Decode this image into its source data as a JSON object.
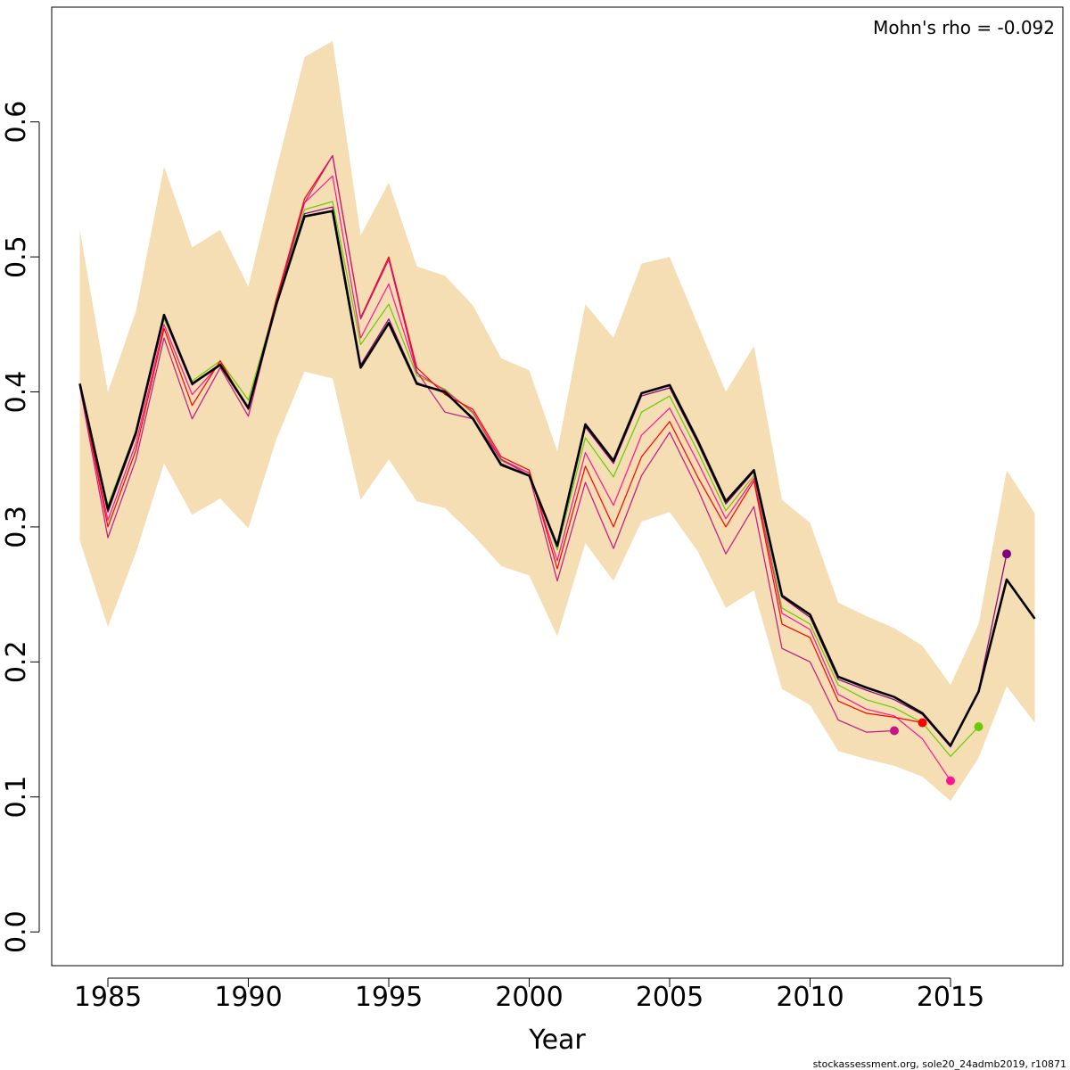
{
  "chart_data": {
    "type": "line",
    "title": "",
    "xlabel": "Year",
    "ylabel": "",
    "annotation": "Mohn's rho = -0.092",
    "footer": "stockassessment.org, sole20_24admb2019, r10871",
    "xlim": [
      1983,
      2019
    ],
    "ylim": [
      -0.025,
      0.685
    ],
    "x_ticks": [
      1985,
      1990,
      1995,
      2000,
      2005,
      2010,
      2015
    ],
    "y_ticks": [
      0.0,
      0.1,
      0.2,
      0.3,
      0.4,
      0.5,
      0.6
    ],
    "y_tick_labels": [
      "0.0",
      "0.1",
      "0.2",
      "0.3",
      "0.4",
      "0.5",
      "0.6"
    ],
    "band_color": "#f5deb3",
    "confidence_band": {
      "x": [
        1984,
        1985,
        1986,
        1987,
        1988,
        1989,
        1990,
        1991,
        1992,
        1993,
        1994,
        1995,
        1996,
        1997,
        1998,
        1999,
        2000,
        2001,
        2002,
        2003,
        2004,
        2005,
        2006,
        2007,
        2008,
        2009,
        2010,
        2011,
        2012,
        2013,
        2014,
        2015,
        2016,
        2017,
        2018
      ],
      "upper": [
        0.52,
        0.4,
        0.46,
        0.567,
        0.507,
        0.52,
        0.478,
        0.565,
        0.648,
        0.66,
        0.516,
        0.555,
        0.493,
        0.486,
        0.464,
        0.425,
        0.416,
        0.356,
        0.465,
        0.44,
        0.495,
        0.5,
        0.45,
        0.4,
        0.434,
        0.32,
        0.303,
        0.244,
        0.234,
        0.225,
        0.212,
        0.183,
        0.228,
        0.342,
        0.31
      ],
      "lower": [
        0.29,
        0.226,
        0.281,
        0.347,
        0.309,
        0.321,
        0.299,
        0.365,
        0.415,
        0.41,
        0.32,
        0.35,
        0.319,
        0.314,
        0.294,
        0.271,
        0.264,
        0.219,
        0.288,
        0.26,
        0.304,
        0.311,
        0.282,
        0.24,
        0.253,
        0.18,
        0.168,
        0.134,
        0.128,
        0.123,
        0.115,
        0.097,
        0.129,
        0.182,
        0.155
      ]
    },
    "series": [
      {
        "color": "#000000",
        "width": 2.6,
        "end_marker": false,
        "x": [
          1984,
          1985,
          1986,
          1987,
          1988,
          1989,
          1990,
          1991,
          1992,
          1993,
          1994,
          1995,
          1996,
          1997,
          1998,
          1999,
          2000,
          2001,
          2002,
          2003,
          2004,
          2005,
          2006,
          2007,
          2008,
          2009,
          2010,
          2011,
          2012,
          2013,
          2014,
          2015,
          2016,
          2017,
          2018
        ],
        "y": [
          0.406,
          0.313,
          0.37,
          0.457,
          0.406,
          0.42,
          0.388,
          0.465,
          0.53,
          0.534,
          0.418,
          0.451,
          0.406,
          0.4,
          0.38,
          0.346,
          0.338,
          0.286,
          0.376,
          0.349,
          0.399,
          0.405,
          0.364,
          0.319,
          0.342,
          0.249,
          0.235,
          0.189,
          0.181,
          0.174,
          0.162,
          0.138,
          0.178,
          0.261,
          0.232
        ]
      },
      {
        "color": "#800080",
        "width": 1.2,
        "end_marker": true,
        "x": [
          1984,
          1985,
          1986,
          1987,
          1988,
          1989,
          1990,
          1991,
          1992,
          1993,
          1994,
          1995,
          1996,
          1997,
          1998,
          1999,
          2000,
          2001,
          2002,
          2003,
          2004,
          2005,
          2006,
          2007,
          2008,
          2009,
          2010,
          2011,
          2012,
          2013,
          2014,
          2015,
          2016,
          2017
        ],
        "y": [
          0.405,
          0.311,
          0.368,
          0.455,
          0.405,
          0.421,
          0.387,
          0.466,
          0.532,
          0.537,
          0.42,
          0.454,
          0.407,
          0.399,
          0.381,
          0.347,
          0.338,
          0.285,
          0.374,
          0.347,
          0.397,
          0.403,
          0.362,
          0.317,
          0.341,
          0.248,
          0.233,
          0.187,
          0.179,
          0.172,
          0.161,
          0.137,
          0.179,
          0.28
        ]
      },
      {
        "color": "#66cc00",
        "width": 1.2,
        "end_marker": true,
        "x": [
          1984,
          1985,
          1986,
          1987,
          1988,
          1989,
          1990,
          1991,
          1992,
          1993,
          1994,
          1995,
          1996,
          1997,
          1998,
          1999,
          2000,
          2001,
          2002,
          2003,
          2004,
          2005,
          2006,
          2007,
          2008,
          2009,
          2010,
          2011,
          2012,
          2013,
          2014,
          2015,
          2016
        ],
        "y": [
          0.405,
          0.316,
          0.371,
          0.454,
          0.408,
          0.423,
          0.394,
          0.467,
          0.535,
          0.541,
          0.435,
          0.465,
          0.412,
          0.402,
          0.384,
          0.349,
          0.34,
          0.283,
          0.366,
          0.337,
          0.385,
          0.397,
          0.356,
          0.312,
          0.338,
          0.24,
          0.228,
          0.183,
          0.172,
          0.166,
          0.155,
          0.13,
          0.152
        ]
      },
      {
        "color": "#ff1493",
        "width": 1.2,
        "end_marker": true,
        "x": [
          1984,
          1985,
          1986,
          1987,
          1988,
          1989,
          1990,
          1991,
          1992,
          1993,
          1994,
          1995,
          1996,
          1997,
          1998,
          1999,
          2000,
          2001,
          2002,
          2003,
          2004,
          2005,
          2006,
          2007,
          2008,
          2009,
          2010,
          2011,
          2012,
          2013,
          2014,
          2015
        ],
        "y": [
          0.404,
          0.305,
          0.362,
          0.45,
          0.398,
          0.421,
          0.389,
          0.468,
          0.54,
          0.56,
          0.44,
          0.48,
          0.414,
          0.401,
          0.385,
          0.35,
          0.34,
          0.275,
          0.355,
          0.316,
          0.368,
          0.388,
          0.348,
          0.306,
          0.336,
          0.236,
          0.224,
          0.176,
          0.165,
          0.16,
          0.143,
          0.112
        ]
      },
      {
        "color": "#ff0000",
        "width": 1.2,
        "end_marker": true,
        "x": [
          1984,
          1985,
          1986,
          1987,
          1988,
          1989,
          1990,
          1991,
          1992,
          1993,
          1994,
          1995,
          1996,
          1997,
          1998,
          1999,
          2000,
          2001,
          2002,
          2003,
          2004,
          2005,
          2006,
          2007,
          2008,
          2009,
          2010,
          2011,
          2012,
          2013,
          2014
        ],
        "y": [
          0.406,
          0.3,
          0.357,
          0.447,
          0.39,
          0.423,
          0.387,
          0.469,
          0.543,
          0.575,
          0.455,
          0.5,
          0.418,
          0.398,
          0.387,
          0.352,
          0.342,
          0.269,
          0.345,
          0.3,
          0.352,
          0.378,
          0.337,
          0.3,
          0.334,
          0.228,
          0.218,
          0.171,
          0.162,
          0.159,
          0.155
        ]
      },
      {
        "color": "#c71585",
        "width": 1.2,
        "end_marker": true,
        "x": [
          1984,
          1985,
          1986,
          1987,
          1988,
          1989,
          1990,
          1991,
          1992,
          1993,
          1994,
          1995,
          1996,
          1997,
          1998,
          1999,
          2000,
          2001,
          2002,
          2003,
          2004,
          2005,
          2006,
          2007,
          2008,
          2009,
          2010,
          2011,
          2012,
          2013
        ],
        "y": [
          0.404,
          0.292,
          0.35,
          0.44,
          0.38,
          0.418,
          0.382,
          0.466,
          0.54,
          0.575,
          0.454,
          0.498,
          0.415,
          0.385,
          0.38,
          0.35,
          0.338,
          0.26,
          0.333,
          0.284,
          0.338,
          0.37,
          0.328,
          0.28,
          0.315,
          0.21,
          0.2,
          0.157,
          0.148,
          0.149
        ]
      }
    ]
  }
}
